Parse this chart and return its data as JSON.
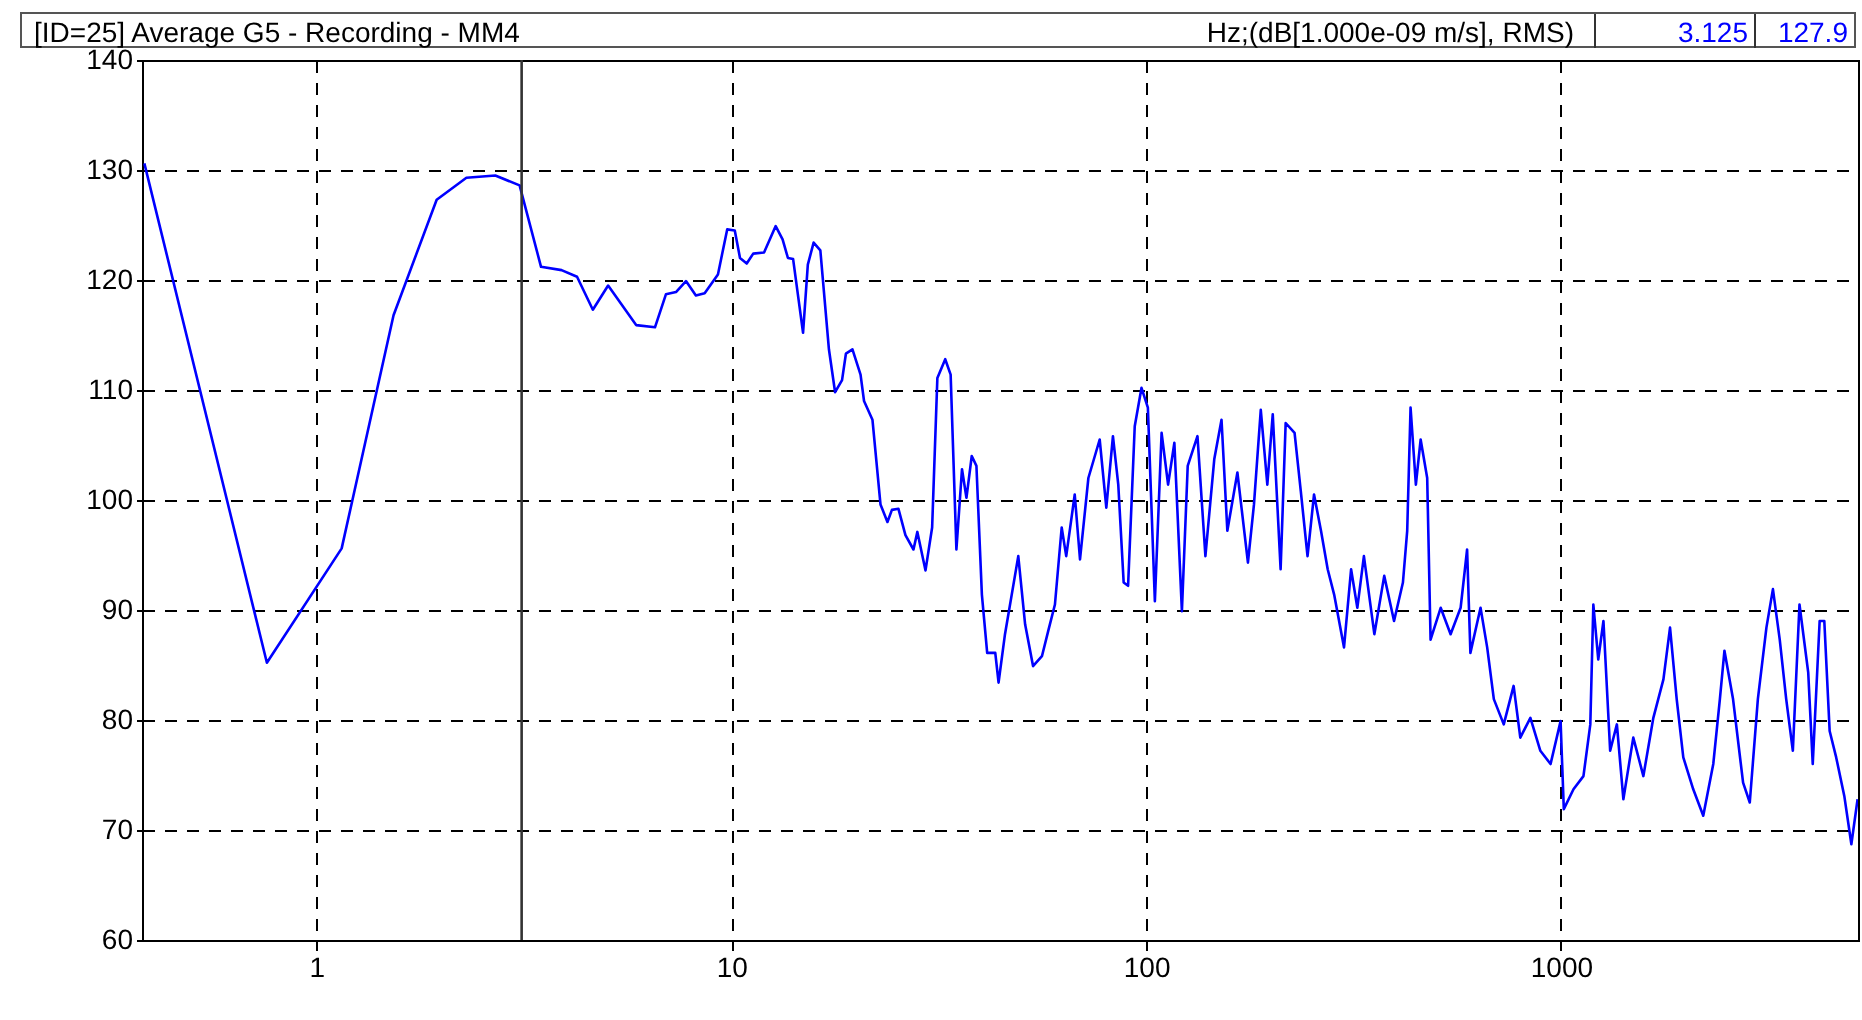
{
  "chart_data": {
    "type": "line",
    "title": "[ID=25] Average G5  - Recording - MM4",
    "subtitle": "Hz;(dB[1.000e-09 m/s], RMS)",
    "annotations": [
      "3.125",
      "127.9"
    ],
    "x": [
      0.385,
      0.76,
      1.151,
      1.535,
      1.95,
      2.3,
      2.7,
      3.09,
      3.48,
      3.9,
      4.25,
      4.64,
      5.05,
      5.9,
      6.55,
      6.96,
      7.36,
      7.78,
      8.22,
      8.63,
      9.29,
      9.78,
      10.2,
      10.5,
      10.9,
      11.3,
      12.0,
      12.8,
      13.3,
      13.7,
      14.1,
      14.9,
      15.3,
      15.8,
      16.4,
      17.2,
      17.8,
      18.5,
      18.9,
      19.6,
      20.5,
      20.9,
      21.9,
      22.9,
      23.8,
      24.4,
      25.3,
      26.3,
      27.5,
      28.1,
      29.4,
      30.5,
      31.4,
      32.8,
      33.8,
      34.9,
      36.0,
      36.9,
      38.0,
      39.0,
      40.2,
      41.4,
      43.3,
      44.1,
      45.7,
      49.2,
      51.1,
      53.4,
      56.1,
      58.1,
      60.3,
      62.6,
      64.2,
      67.3,
      69.3,
      72.6,
      77.3,
      80.2,
      83.2,
      85.7,
      88.3,
      90.5,
      93.9,
      97.5,
      101,
      105,
      109,
      113,
      117,
      122,
      126,
      133,
      139,
      146,
      152,
      157,
      166,
      176,
      182,
      189,
      196,
      202,
      211,
      217,
      228,
      236,
      245,
      254,
      264,
      274,
      284,
      300,
      312,
      323,
      335,
      355,
      375,
      396,
      416,
      426,
      434,
      447,
      459,
      476,
      485,
      513,
      542,
      573,
      594,
      605,
      640,
      664,
      689,
      728,
      769,
      798,
      844,
      892,
      944,
      998,
      1016,
      1072,
      1133,
      1177,
      1197,
      1230,
      1266,
      1314,
      1364,
      1414,
      1494,
      1580,
      1670,
      1766,
      1832,
      1901,
      1972,
      2084,
      2203,
      2329,
      2416,
      2478,
      2599,
      2748,
      2852,
      2983,
      3128,
      3243,
      3368,
      3491,
      3622,
      3758,
      3945,
      4045,
      4203,
      4313,
      4443,
      4607,
      4819,
      5012,
      5188
    ],
    "series": [
      {
        "color": "#0000ff",
        "values": [
          130.6,
          85.2,
          95.6,
          116.8,
          127.3,
          129.3,
          129.5,
          128.6,
          121.2,
          120.9,
          120.3,
          117.3,
          119.5,
          115.9,
          115.7,
          118.7,
          118.9,
          119.9,
          118.6,
          118.8,
          120.5,
          124.6,
          124.5,
          122.0,
          121.5,
          122.4,
          122.5,
          124.9,
          123.7,
          122.0,
          121.9,
          115.2,
          121.4,
          123.4,
          122.7,
          113.7,
          109.8,
          110.9,
          113.3,
          113.7,
          111.4,
          109.0,
          107.3,
          99.6,
          98.0,
          99.1,
          99.2,
          96.8,
          95.5,
          97.1,
          93.6,
          97.5,
          111.1,
          112.8,
          111.4,
          95.5,
          102.8,
          100.2,
          104.0,
          103.1,
          91.4,
          86.1,
          86.1,
          83.4,
          87.8,
          94.9,
          88.7,
          84.9,
          85.8,
          88.1,
          90.5,
          97.5,
          94.9,
          100.5,
          94.6,
          102.0,
          105.5,
          99.3,
          105.8,
          101.4,
          92.5,
          92.2,
          106.7,
          110.2,
          108.4,
          90.8,
          106.1,
          101.4,
          105.2,
          89.9,
          103.1,
          105.8,
          94.9,
          103.7,
          107.3,
          97.2,
          102.5,
          94.3,
          99.6,
          108.2,
          101.4,
          107.8,
          93.7,
          107.0,
          106.1,
          100.8,
          94.9,
          100.5,
          97.2,
          93.7,
          91.4,
          86.6,
          93.7,
          90.2,
          94.9,
          87.8,
          93.1,
          89.0,
          92.5,
          97.2,
          108.4,
          101.4,
          105.5,
          102.0,
          87.3,
          90.2,
          87.8,
          90.2,
          95.5,
          86.1,
          90.2,
          86.6,
          81.9,
          79.6,
          83.1,
          78.4,
          80.2,
          77.2,
          76.0,
          79.9,
          71.9,
          73.7,
          74.9,
          79.6,
          90.5,
          85.5,
          89.0,
          77.2,
          79.6,
          72.8,
          78.4,
          74.9,
          80.2,
          83.7,
          88.4,
          81.9,
          76.6,
          73.7,
          71.3,
          76.0,
          81.9,
          86.3,
          81.9,
          74.3,
          72.5,
          81.9,
          88.4,
          91.9,
          87.3,
          81.9,
          77.2,
          90.5,
          84.3,
          76.0,
          89.0,
          89.0,
          79.0,
          76.6,
          73.1,
          68.7,
          72.8
        ]
      }
    ],
    "xlim": [
      0.38,
      5200
    ],
    "ylim": [
      60,
      140
    ],
    "xticks": [
      1,
      10,
      100,
      1000
    ],
    "yticks": [
      60,
      70,
      80,
      90,
      100,
      110,
      120,
      130,
      140
    ],
    "log": "x",
    "grid": true,
    "marker": "none",
    "line_style": "solid",
    "ref_lines": [
      {
        "axis": "x",
        "value": 3.125
      }
    ]
  }
}
